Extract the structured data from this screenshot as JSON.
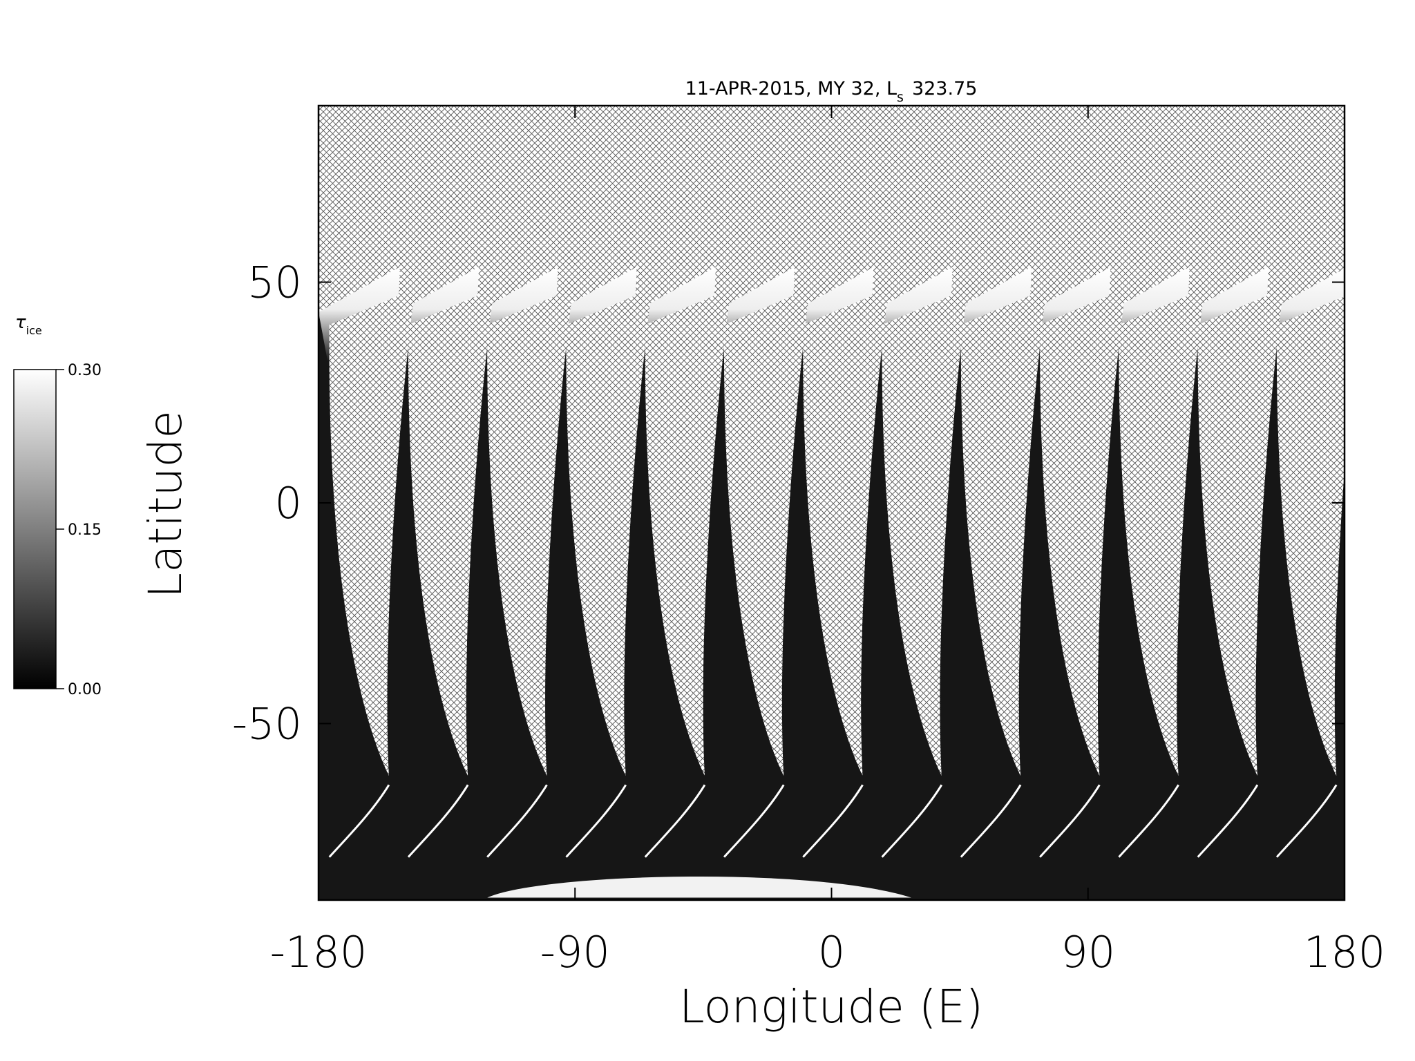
{
  "chart_data": {
    "type": "map",
    "title": "11-APR-2015, MY 32,  L",
    "title_subscript": "s",
    "title_value": "323.75",
    "xlabel": "Longitude (E)",
    "ylabel": "Latitude",
    "xlim": [
      -180,
      180
    ],
    "ylim": [
      -90,
      90
    ],
    "xticks": [
      -180,
      -90,
      0,
      90,
      180
    ],
    "yticks": [
      -50,
      0,
      50
    ],
    "colorbar": {
      "label": "τ",
      "label_subscript": "ice",
      "lim": [
        0,
        0.3
      ],
      "ticks": [
        {
          "value": 0,
          "label": "0.00"
        },
        {
          "value": 0.15,
          "label": "0.15"
        },
        {
          "value": 0.3,
          "label": "0.30"
        }
      ],
      "colors": [
        "#000000",
        "#ffffff"
      ]
    }
  }
}
